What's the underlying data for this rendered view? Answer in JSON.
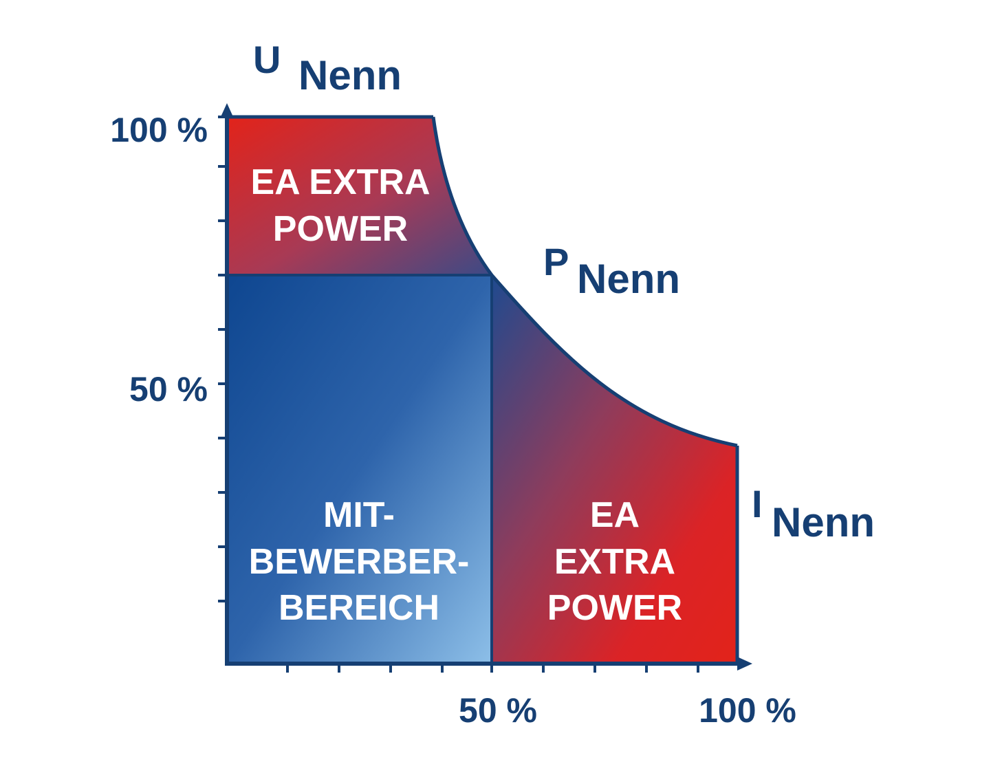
{
  "axes": {
    "y": {
      "symbol": "U",
      "subscript": "Nenn",
      "ticks": [
        "100 %",
        "50 %"
      ]
    },
    "x": {
      "symbol": "I",
      "subscript": "Nenn",
      "ticks": [
        "50 %",
        "100 %"
      ]
    }
  },
  "power_curve": {
    "symbol": "P",
    "subscript": "Nenn"
  },
  "regions": {
    "top_extra": {
      "line1": "EA EXTRA",
      "line2": "POWER"
    },
    "competitor": {
      "line1": "MIT-",
      "line2": "BEWERBER-",
      "line3": "BEREICH"
    },
    "right_extra": {
      "line1": "EA",
      "line2": "EXTRA",
      "line3": "POWER"
    }
  },
  "colors": {
    "axis": "#163f73",
    "red": "#e2231a",
    "blue_dark": "#10478f",
    "blue_light": "#8ebfe8",
    "purple": "#4f4680"
  }
}
